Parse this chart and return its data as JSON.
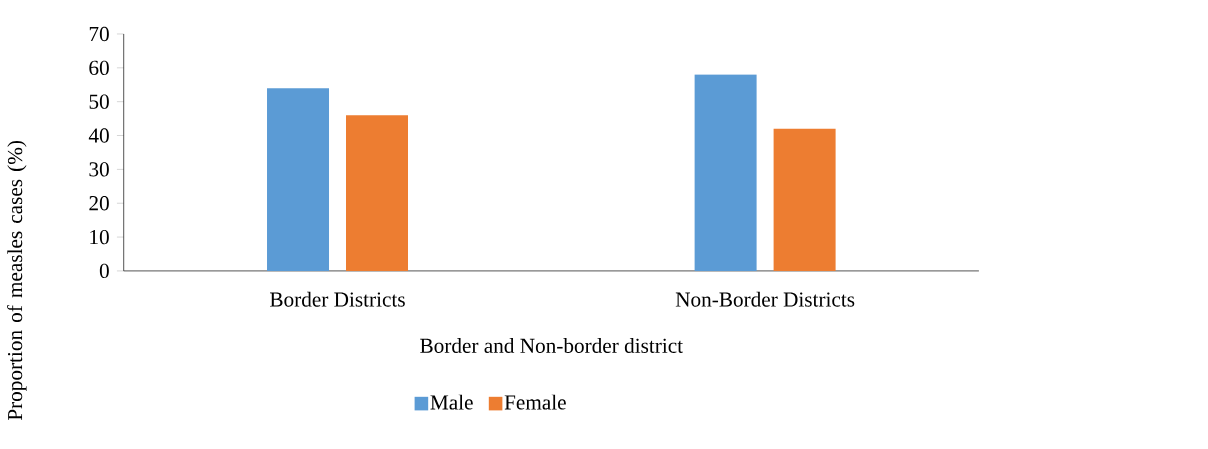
{
  "chart_data": {
    "type": "bar",
    "xlabel": "Border and Non-border district",
    "ylabel": "Proportion of  measles cases (%)",
    "categories": [
      "Border Districts",
      "Non-Border Districts"
    ],
    "series": [
      {
        "name": "Male",
        "color": "#5b9bd5",
        "values": [
          54,
          58
        ]
      },
      {
        "name": "Female",
        "color": "#ed7d31",
        "values": [
          46,
          42
        ]
      }
    ],
    "ylim": [
      0,
      70
    ],
    "yticks": [
      0,
      10,
      20,
      30,
      40,
      50,
      60,
      70
    ],
    "grid": false,
    "legend": "bottom"
  }
}
